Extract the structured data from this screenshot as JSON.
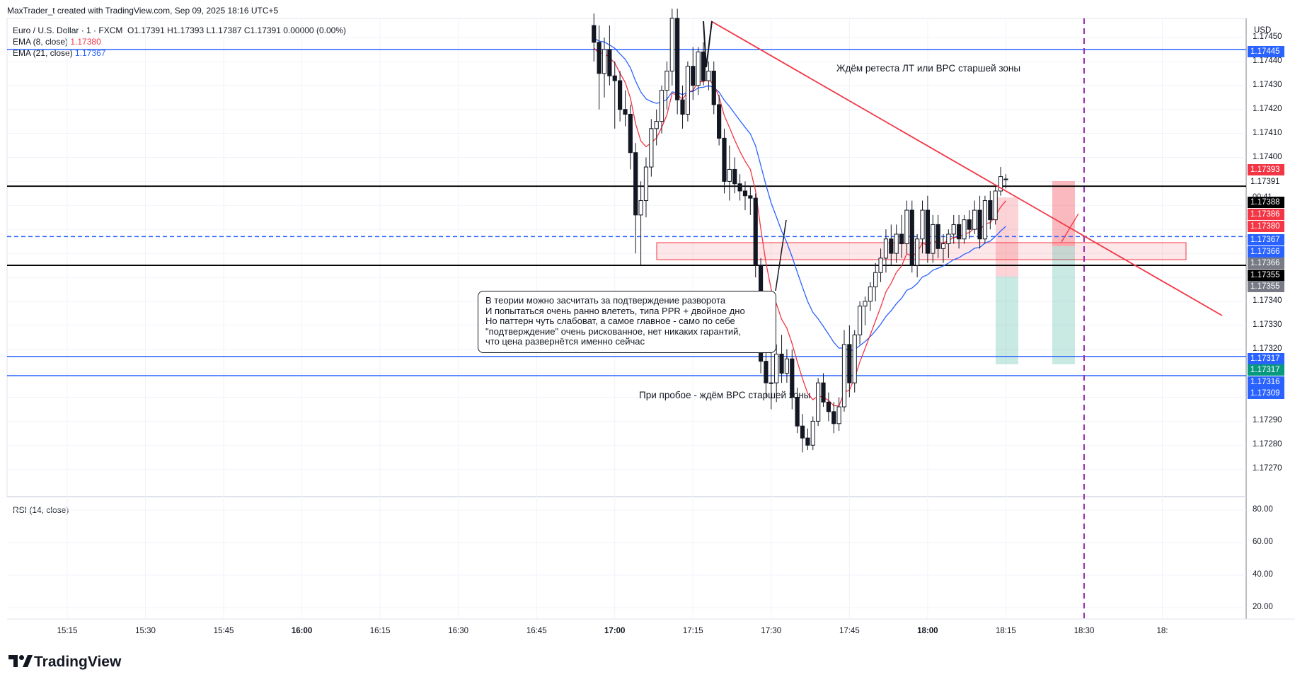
{
  "header": {
    "credit": "MaxTrader_t created with TradingView.com, Sep 09, 2025 18:16 UTC+5",
    "symbol": "Euro / U.S. Dollar · 1 · FXCM",
    "ohlc": "O1.17391 H1.17393 L1.17387 C1.17391 0.00000 (0.00%)",
    "ema8_label": "EMA (8, close)",
    "ema8_value": "1.17380",
    "ema21_label": "EMA (21, close)",
    "ema21_value": "1.17367",
    "rsi_label": "RSI (14, close)"
  },
  "colors": {
    "up": "#131722",
    "down": "#131722",
    "ema8": "#f23645",
    "ema21": "#2962ff",
    "trendline": "#f23645",
    "hline_black": "#000000",
    "hline_blue": "#2962ff",
    "vline_purple": "#9c27b0"
  },
  "axis": {
    "currency": "USD",
    "price_ticks": [
      "1.17450",
      "1.17440",
      "1.17430",
      "1.17420",
      "1.17410",
      "1.17400",
      "1.17390",
      "1.17380",
      "1.17370",
      "1.17360",
      "1.17350",
      "1.17340",
      "1.17330",
      "1.17320",
      "1.17310",
      "1.17300",
      "1.17290",
      "1.17280",
      "1.17270"
    ],
    "rsi_ticks": [
      "80.00",
      "60.00",
      "40.00",
      "20.00"
    ],
    "time_ticks": [
      {
        "label": "15:15",
        "bold": false
      },
      {
        "label": "15:30",
        "bold": false
      },
      {
        "label": "15:45",
        "bold": false
      },
      {
        "label": "16:00",
        "bold": true
      },
      {
        "label": "16:15",
        "bold": false
      },
      {
        "label": "16:30",
        "bold": false
      },
      {
        "label": "16:45",
        "bold": false
      },
      {
        "label": "17:00",
        "bold": true
      },
      {
        "label": "17:15",
        "bold": false
      },
      {
        "label": "17:30",
        "bold": false
      },
      {
        "label": "17:45",
        "bold": false
      },
      {
        "label": "18:00",
        "bold": true
      },
      {
        "label": "18:15",
        "bold": false
      },
      {
        "label": "18:30",
        "bold": false
      },
      {
        "label": "18:",
        "bold": false
      }
    ],
    "countdown": "00:41"
  },
  "price_tags": [
    {
      "text": "1.17445",
      "color": "#2962ff"
    },
    {
      "text": "1.17393",
      "color": "#f23645"
    },
    {
      "text": "1.17391",
      "color": "#ffffff"
    },
    {
      "text": "1.17388",
      "color": "#000000"
    },
    {
      "text": "1.17386",
      "color": "#f23645"
    },
    {
      "text": "1.17380",
      "color": "#f23645"
    },
    {
      "text": "1.17367",
      "color": "#2962ff"
    },
    {
      "text": "1.17366",
      "color": "#2962ff"
    },
    {
      "text": "1.17366",
      "color": "#787b86"
    },
    {
      "text": "1.17355",
      "color": "#000000"
    },
    {
      "text": "1.17355",
      "color": "#787b86"
    },
    {
      "text": "1.17317",
      "color": "#2962ff"
    },
    {
      "text": "1.17317",
      "color": "#089981"
    },
    {
      "text": "1.17316",
      "color": "#2962ff"
    },
    {
      "text": "1.17309",
      "color": "#2962ff"
    }
  ],
  "annotations": {
    "top_text": "Ждём ретеста ЛТ или ВРС старшей зоны",
    "bottom_text": "При пробое - ждём ВРС старшей зоны",
    "note_lines": [
      "В теории можно засчитать за подтверждение разворота",
      "И попытаться очень ранно влететь, типа PPR + двойное дно",
      "Но паттерн чуть слабоват, а самое главное - само по себе",
      "\"подтверждение\" очень рискованное, нет никаких гарантий,",
      "что цена развернётся именно сейчас"
    ]
  },
  "brand": "TradingView",
  "chart_data": {
    "type": "candlestick",
    "title": "Euro / U.S. Dollar · 1 · FXCM",
    "ylim": [
      1.17265,
      1.17455
    ],
    "horizontal_levels": [
      {
        "price": 1.17445,
        "style": "solid",
        "color": "#2962ff"
      },
      {
        "price": 1.17388,
        "style": "solid",
        "color": "#000000"
      },
      {
        "price": 1.17367,
        "style": "dashed",
        "color": "#2962ff"
      },
      {
        "price": 1.17355,
        "style": "solid",
        "color": "#000000"
      },
      {
        "price": 1.17317,
        "style": "solid",
        "color": "#2962ff"
      },
      {
        "price": 1.17309,
        "style": "solid",
        "color": "#2962ff"
      }
    ],
    "candles": [
      {
        "t": "16:56",
        "o": 1.17455,
        "h": 1.1746,
        "l": 1.1744,
        "c": 1.17448
      },
      {
        "t": "16:57",
        "o": 1.17448,
        "h": 1.17455,
        "l": 1.1742,
        "c": 1.17435
      },
      {
        "t": "16:58",
        "o": 1.17435,
        "h": 1.1745,
        "l": 1.17425,
        "c": 1.17445
      },
      {
        "t": "16:59",
        "o": 1.17445,
        "h": 1.17455,
        "l": 1.1743,
        "c": 1.17434
      },
      {
        "t": "17:00",
        "o": 1.17434,
        "h": 1.1744,
        "l": 1.17412,
        "c": 1.17432
      },
      {
        "t": "17:01",
        "o": 1.17432,
        "h": 1.17436,
        "l": 1.17415,
        "c": 1.1742
      },
      {
        "t": "17:02",
        "o": 1.1742,
        "h": 1.17428,
        "l": 1.17413,
        "c": 1.17418
      },
      {
        "t": "17:03",
        "o": 1.17418,
        "h": 1.17422,
        "l": 1.17395,
        "c": 1.17402
      },
      {
        "t": "17:04",
        "o": 1.17402,
        "h": 1.17406,
        "l": 1.1736,
        "c": 1.17376
      },
      {
        "t": "17:05",
        "o": 1.17376,
        "h": 1.1739,
        "l": 1.17355,
        "c": 1.17382
      },
      {
        "t": "17:06",
        "o": 1.17382,
        "h": 1.174,
        "l": 1.17375,
        "c": 1.17396
      },
      {
        "t": "17:07",
        "o": 1.17396,
        "h": 1.17416,
        "l": 1.17392,
        "c": 1.17412
      },
      {
        "t": "17:08",
        "o": 1.17412,
        "h": 1.1742,
        "l": 1.17405,
        "c": 1.17415
      },
      {
        "t": "17:09",
        "o": 1.17415,
        "h": 1.1743,
        "l": 1.1741,
        "c": 1.17428
      },
      {
        "t": "17:10",
        "o": 1.17428,
        "h": 1.1744,
        "l": 1.1742,
        "c": 1.17436
      },
      {
        "t": "17:11",
        "o": 1.17436,
        "h": 1.17462,
        "l": 1.1743,
        "c": 1.17458
      },
      {
        "t": "17:12",
        "o": 1.17458,
        "h": 1.17462,
        "l": 1.17418,
        "c": 1.17424
      },
      {
        "t": "17:13",
        "o": 1.17424,
        "h": 1.1743,
        "l": 1.17412,
        "c": 1.17418
      },
      {
        "t": "17:14",
        "o": 1.17418,
        "h": 1.1744,
        "l": 1.17415,
        "c": 1.17438
      },
      {
        "t": "17:15",
        "o": 1.17438,
        "h": 1.17446,
        "l": 1.17424,
        "c": 1.1743
      },
      {
        "t": "17:16",
        "o": 1.1743,
        "h": 1.17446,
        "l": 1.17426,
        "c": 1.17444
      },
      {
        "t": "17:17",
        "o": 1.17444,
        "h": 1.17448,
        "l": 1.1743,
        "c": 1.17432
      },
      {
        "t": "17:18",
        "o": 1.17432,
        "h": 1.1744,
        "l": 1.17428,
        "c": 1.17436
      },
      {
        "t": "17:19",
        "o": 1.17436,
        "h": 1.1744,
        "l": 1.17418,
        "c": 1.17422
      },
      {
        "t": "17:20",
        "o": 1.17422,
        "h": 1.17426,
        "l": 1.17405,
        "c": 1.17408
      },
      {
        "t": "17:21",
        "o": 1.17408,
        "h": 1.17412,
        "l": 1.17385,
        "c": 1.1739
      },
      {
        "t": "17:22",
        "o": 1.1739,
        "h": 1.17405,
        "l": 1.17382,
        "c": 1.17395
      },
      {
        "t": "17:23",
        "o": 1.17395,
        "h": 1.174,
        "l": 1.17385,
        "c": 1.17389
      },
      {
        "t": "17:24",
        "o": 1.17389,
        "h": 1.17393,
        "l": 1.17382,
        "c": 1.17386
      },
      {
        "t": "17:25",
        "o": 1.17386,
        "h": 1.1739,
        "l": 1.17378,
        "c": 1.17384
      },
      {
        "t": "17:26",
        "o": 1.17384,
        "h": 1.17388,
        "l": 1.17376,
        "c": 1.17383
      },
      {
        "t": "17:27",
        "o": 1.17383,
        "h": 1.17385,
        "l": 1.1735,
        "c": 1.17355
      },
      {
        "t": "17:28",
        "o": 1.17355,
        "h": 1.17358,
        "l": 1.1731,
        "c": 1.17315
      },
      {
        "t": "17:29",
        "o": 1.17315,
        "h": 1.1733,
        "l": 1.173,
        "c": 1.17306
      },
      {
        "t": "17:30",
        "o": 1.17306,
        "h": 1.1732,
        "l": 1.17295,
        "c": 1.17306
      },
      {
        "t": "17:31",
        "o": 1.17306,
        "h": 1.17322,
        "l": 1.17298,
        "c": 1.17318
      },
      {
        "t": "17:32",
        "o": 1.17318,
        "h": 1.17326,
        "l": 1.17306,
        "c": 1.1731
      },
      {
        "t": "17:33",
        "o": 1.1731,
        "h": 1.1732,
        "l": 1.17306,
        "c": 1.17316
      },
      {
        "t": "17:34",
        "o": 1.17316,
        "h": 1.1732,
        "l": 1.17295,
        "c": 1.173
      },
      {
        "t": "17:35",
        "o": 1.173,
        "h": 1.17304,
        "l": 1.17285,
        "c": 1.17288
      },
      {
        "t": "17:36",
        "o": 1.17288,
        "h": 1.17293,
        "l": 1.17277,
        "c": 1.17283
      },
      {
        "t": "17:37",
        "o": 1.17283,
        "h": 1.17287,
        "l": 1.17278,
        "c": 1.1728
      },
      {
        "t": "17:38",
        "o": 1.1728,
        "h": 1.17292,
        "l": 1.17278,
        "c": 1.1729
      },
      {
        "t": "17:39",
        "o": 1.1729,
        "h": 1.17308,
        "l": 1.17288,
        "c": 1.17306
      },
      {
        "t": "17:40",
        "o": 1.17306,
        "h": 1.1731,
        "l": 1.17296,
        "c": 1.17298
      },
      {
        "t": "17:41",
        "o": 1.17298,
        "h": 1.17302,
        "l": 1.1729,
        "c": 1.17294
      },
      {
        "t": "17:42",
        "o": 1.17294,
        "h": 1.17298,
        "l": 1.17285,
        "c": 1.17289
      },
      {
        "t": "17:43",
        "o": 1.17289,
        "h": 1.173,
        "l": 1.17286,
        "c": 1.17296
      },
      {
        "t": "17:44",
        "o": 1.17296,
        "h": 1.17328,
        "l": 1.17294,
        "c": 1.17322
      },
      {
        "t": "17:45",
        "o": 1.17322,
        "h": 1.1733,
        "l": 1.173,
        "c": 1.17306
      },
      {
        "t": "17:46",
        "o": 1.17306,
        "h": 1.17328,
        "l": 1.17302,
        "c": 1.17326
      },
      {
        "t": "17:47",
        "o": 1.17326,
        "h": 1.1734,
        "l": 1.17322,
        "c": 1.17338
      },
      {
        "t": "17:48",
        "o": 1.17338,
        "h": 1.17342,
        "l": 1.1733,
        "c": 1.1734
      },
      {
        "t": "17:49",
        "o": 1.1734,
        "h": 1.17348,
        "l": 1.17336,
        "c": 1.17346
      },
      {
        "t": "17:50",
        "o": 1.17346,
        "h": 1.17356,
        "l": 1.1734,
        "c": 1.17352
      },
      {
        "t": "17:51",
        "o": 1.17352,
        "h": 1.17362,
        "l": 1.17348,
        "c": 1.17358
      },
      {
        "t": "17:52",
        "o": 1.17358,
        "h": 1.1737,
        "l": 1.17352,
        "c": 1.17366
      },
      {
        "t": "17:53",
        "o": 1.17366,
        "h": 1.17372,
        "l": 1.17355,
        "c": 1.1736
      },
      {
        "t": "17:54",
        "o": 1.1736,
        "h": 1.17372,
        "l": 1.17356,
        "c": 1.17368
      },
      {
        "t": "17:55",
        "o": 1.17368,
        "h": 1.17376,
        "l": 1.17358,
        "c": 1.17364
      },
      {
        "t": "17:56",
        "o": 1.17364,
        "h": 1.17382,
        "l": 1.1736,
        "c": 1.17378
      },
      {
        "t": "17:57",
        "o": 1.17378,
        "h": 1.17382,
        "l": 1.17352,
        "c": 1.17355
      },
      {
        "t": "17:58",
        "o": 1.17355,
        "h": 1.17368,
        "l": 1.1735,
        "c": 1.17366
      },
      {
        "t": "17:59",
        "o": 1.17366,
        "h": 1.17382,
        "l": 1.1736,
        "c": 1.17378
      },
      {
        "t": "18:00",
        "o": 1.17378,
        "h": 1.17384,
        "l": 1.17356,
        "c": 1.1736
      },
      {
        "t": "18:01",
        "o": 1.1736,
        "h": 1.17376,
        "l": 1.17356,
        "c": 1.17372
      },
      {
        "t": "18:02",
        "o": 1.17372,
        "h": 1.17376,
        "l": 1.17358,
        "c": 1.17362
      },
      {
        "t": "18:03",
        "o": 1.17362,
        "h": 1.17368,
        "l": 1.17356,
        "c": 1.17364
      },
      {
        "t": "18:04",
        "o": 1.17364,
        "h": 1.1737,
        "l": 1.17358,
        "c": 1.17368
      },
      {
        "t": "18:05",
        "o": 1.17368,
        "h": 1.17376,
        "l": 1.17364,
        "c": 1.17372
      },
      {
        "t": "18:06",
        "o": 1.17372,
        "h": 1.17376,
        "l": 1.17362,
        "c": 1.17366
      },
      {
        "t": "18:07",
        "o": 1.17366,
        "h": 1.17376,
        "l": 1.17364,
        "c": 1.17374
      },
      {
        "t": "18:08",
        "o": 1.17374,
        "h": 1.17378,
        "l": 1.17366,
        "c": 1.1737
      },
      {
        "t": "18:09",
        "o": 1.1737,
        "h": 1.17382,
        "l": 1.17368,
        "c": 1.17378
      },
      {
        "t": "18:10",
        "o": 1.17378,
        "h": 1.17384,
        "l": 1.17362,
        "c": 1.17366
      },
      {
        "t": "18:11",
        "o": 1.17366,
        "h": 1.17384,
        "l": 1.17364,
        "c": 1.17382
      },
      {
        "t": "18:12",
        "o": 1.17382,
        "h": 1.17386,
        "l": 1.1737,
        "c": 1.17374
      },
      {
        "t": "18:13",
        "o": 1.17374,
        "h": 1.17388,
        "l": 1.17372,
        "c": 1.17386
      },
      {
        "t": "18:14",
        "o": 1.17386,
        "h": 1.17396,
        "l": 1.17384,
        "c": 1.17392
      },
      {
        "t": "18:15",
        "o": 1.17391,
        "h": 1.17393,
        "l": 1.17387,
        "c": 1.17391
      }
    ]
  }
}
